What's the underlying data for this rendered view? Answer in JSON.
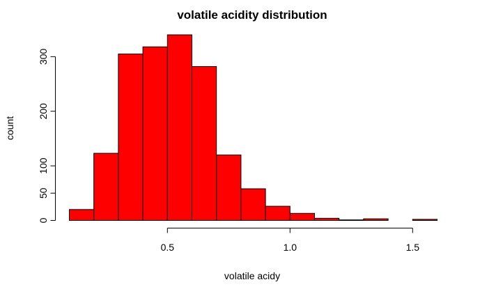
{
  "chart_data": {
    "type": "bar",
    "title": "volatile acidity distribution",
    "xlabel": "volatile acidy",
    "ylabel": "count",
    "bin_edges": [
      0.1,
      0.2,
      0.3,
      0.4,
      0.5,
      0.6,
      0.7,
      0.8,
      0.9,
      1.0,
      1.1,
      1.2,
      1.3,
      1.4,
      1.5,
      1.6
    ],
    "values": [
      20,
      123,
      305,
      318,
      340,
      282,
      120,
      58,
      26,
      13,
      4,
      1,
      3,
      0,
      2
    ],
    "x_ticks": [
      0.5,
      1.0,
      1.5
    ],
    "x_tick_labels": [
      "0.5",
      "1.0",
      "1.5"
    ],
    "y_ticks": [
      0,
      50,
      100,
      200,
      300
    ],
    "y_tick_labels": [
      "0",
      "50",
      "100",
      "200",
      "300"
    ],
    "xlim": [
      0.1,
      1.6
    ],
    "ylim": [
      0,
      340
    ],
    "bar_color": "#ff0000"
  }
}
